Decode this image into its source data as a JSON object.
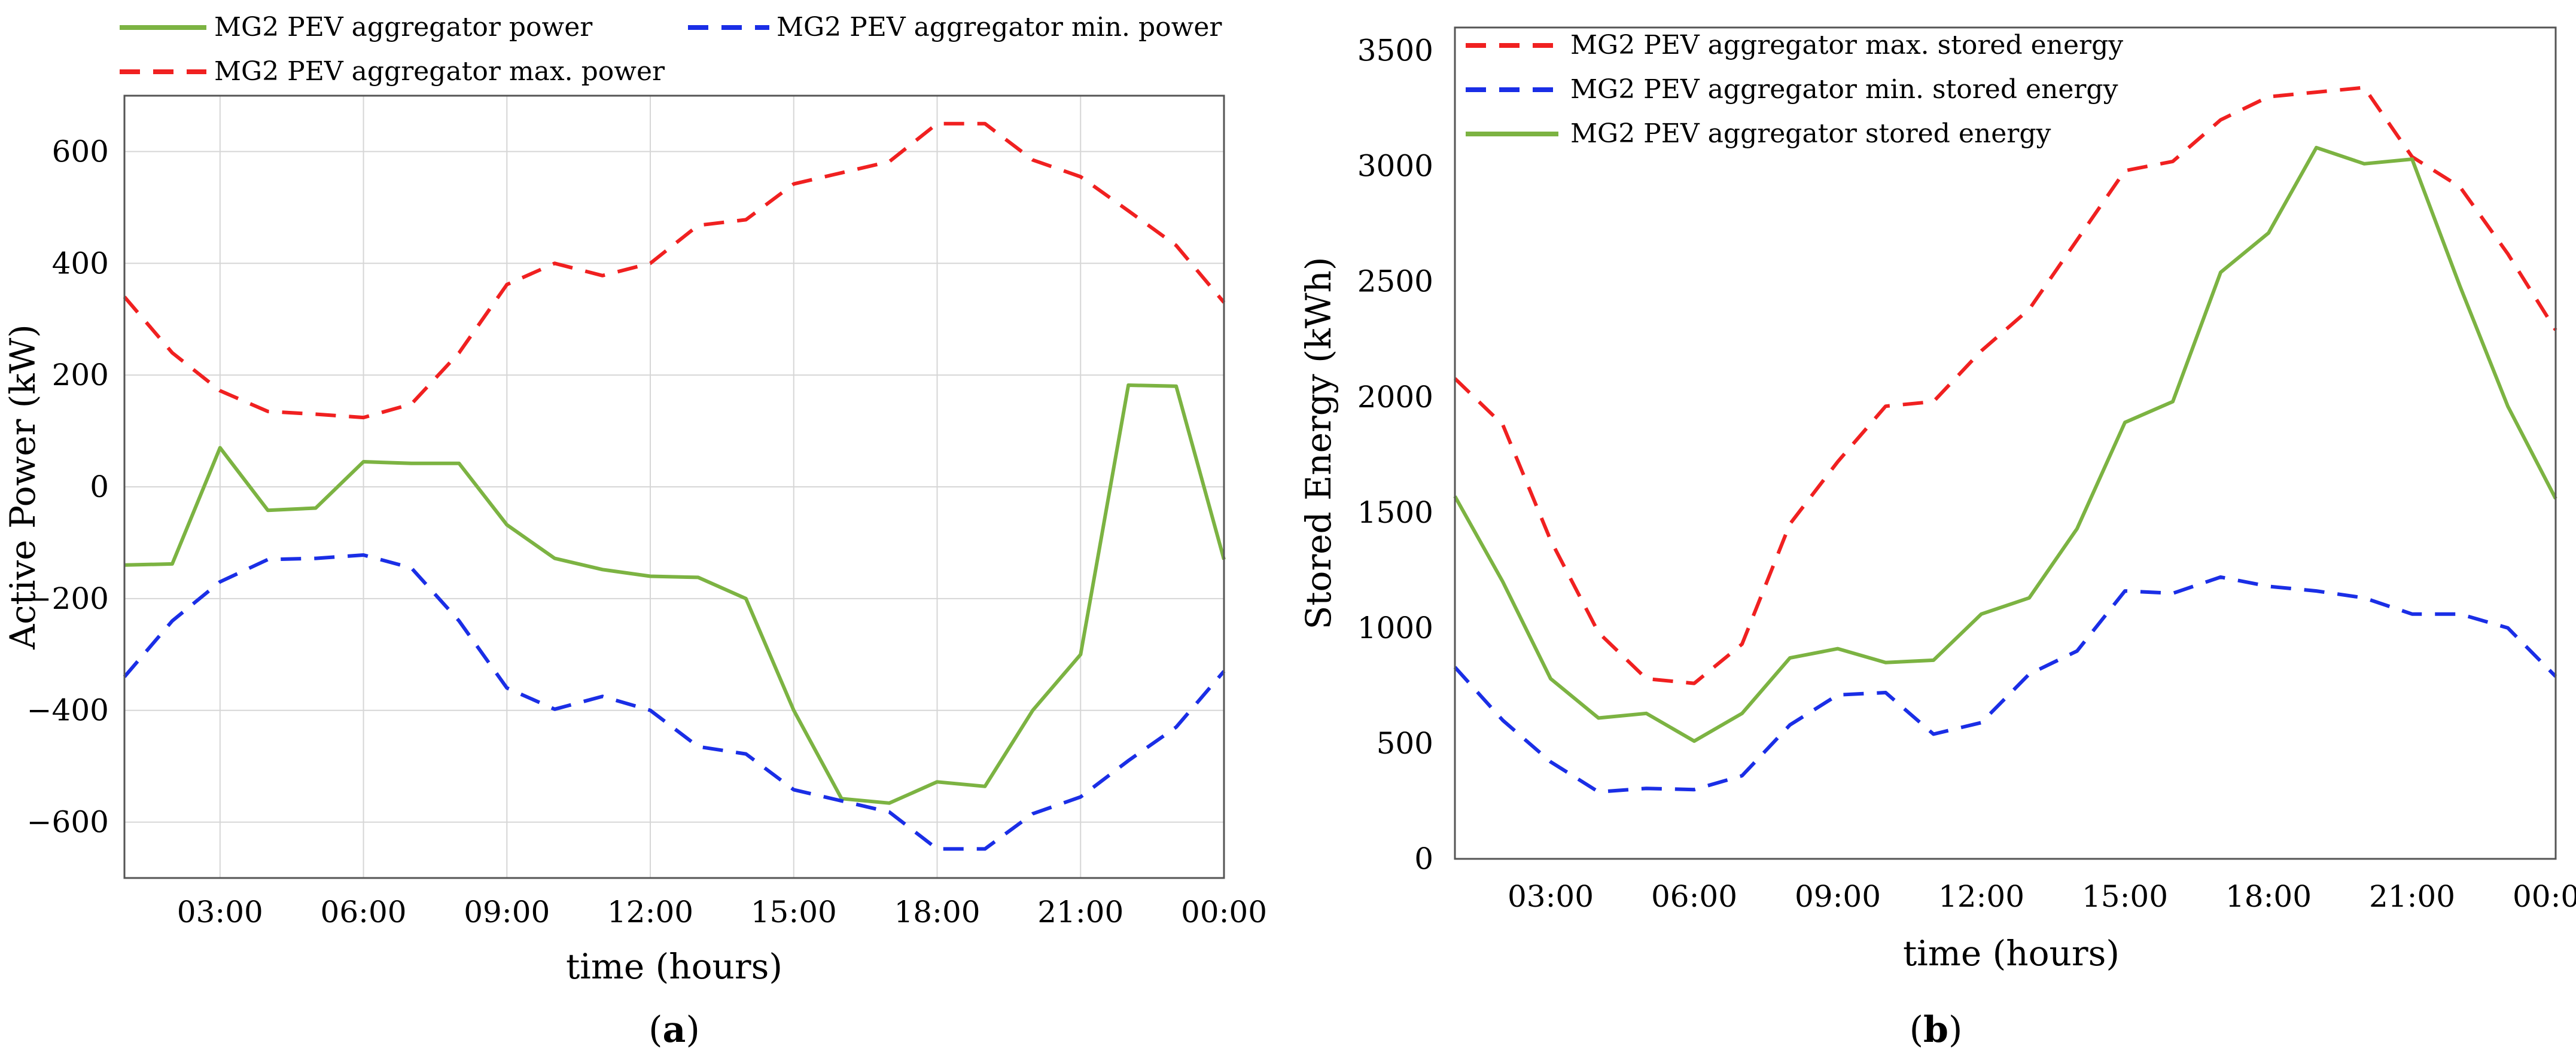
{
  "chart_data": [
    {
      "type": "line",
      "panel_label": "a",
      "xlabel": "time (hours)",
      "ylabel": "Active Power (kW)",
      "x_hours": [
        1,
        2,
        3,
        4,
        5,
        6,
        7,
        8,
        9,
        10,
        11,
        12,
        13,
        14,
        15,
        16,
        17,
        18,
        19,
        20,
        21,
        22,
        23,
        24
      ],
      "xlim": [
        1,
        24
      ],
      "ylim": [
        -700,
        700
      ],
      "xticks": [
        {
          "value": 3,
          "label": "03:00"
        },
        {
          "value": 6,
          "label": "06:00"
        },
        {
          "value": 9,
          "label": "09:00"
        },
        {
          "value": 12,
          "label": "12:00"
        },
        {
          "value": 15,
          "label": "15:00"
        },
        {
          "value": 18,
          "label": "18:00"
        },
        {
          "value": 21,
          "label": "21:00"
        },
        {
          "value": 24,
          "label": "00:00"
        }
      ],
      "yticks": [
        {
          "value": -600,
          "label": "−600"
        },
        {
          "value": -400,
          "label": "−400"
        },
        {
          "value": -200,
          "label": "−200"
        },
        {
          "value": 0,
          "label": "0"
        },
        {
          "value": 200,
          "label": "200"
        },
        {
          "value": 400,
          "label": "400"
        },
        {
          "value": 600,
          "label": "600"
        }
      ],
      "grid": true,
      "legend_position": "above",
      "series": [
        {
          "name": "MG2 PEV aggregator power",
          "color": "#7cb342",
          "dash": "solid",
          "values": [
            -140,
            -138,
            70,
            -42,
            -38,
            45,
            42,
            42,
            -68,
            -128,
            -148,
            -160,
            -162,
            -200,
            -400,
            -558,
            -566,
            -528,
            -536,
            -400,
            -300,
            182,
            180,
            -130
          ]
        },
        {
          "name": "MG2 PEV aggregator min. power",
          "color": "#1a2ee6",
          "dash": "dashed",
          "values": [
            -340,
            -240,
            -170,
            -130,
            -128,
            -122,
            -145,
            -240,
            -360,
            -398,
            -375,
            -400,
            -465,
            -478,
            -542,
            -562,
            -582,
            -648,
            -648,
            -585,
            -555,
            -490,
            -430,
            -330
          ]
        },
        {
          "name": "MG2 PEV aggregator max. power",
          "color": "#f02020",
          "dash": "dashed",
          "values": [
            340,
            240,
            172,
            135,
            130,
            124,
            148,
            240,
            362,
            400,
            378,
            400,
            468,
            478,
            542,
            562,
            582,
            650,
            650,
            585,
            555,
            494,
            432,
            330
          ]
        }
      ]
    },
    {
      "type": "line",
      "panel_label": "b",
      "xlabel": "time (hours)",
      "ylabel": "Stored Energy (kWh)",
      "x_hours": [
        1,
        2,
        3,
        4,
        5,
        6,
        7,
        8,
        9,
        10,
        11,
        12,
        13,
        14,
        15,
        16,
        17,
        18,
        19,
        20,
        21,
        22,
        23,
        24
      ],
      "xlim": [
        1,
        24
      ],
      "ylim": [
        0,
        3600
      ],
      "xticks": [
        {
          "value": 3,
          "label": "03:00"
        },
        {
          "value": 6,
          "label": "06:00"
        },
        {
          "value": 9,
          "label": "09:00"
        },
        {
          "value": 12,
          "label": "12:00"
        },
        {
          "value": 15,
          "label": "15:00"
        },
        {
          "value": 18,
          "label": "18:00"
        },
        {
          "value": 21,
          "label": "21:00"
        },
        {
          "value": 24,
          "label": "00:00"
        }
      ],
      "yticks": [
        {
          "value": 0,
          "label": "0"
        },
        {
          "value": 500,
          "label": "500"
        },
        {
          "value": 1000,
          "label": "1000"
        },
        {
          "value": 1500,
          "label": "1500"
        },
        {
          "value": 2000,
          "label": "2000"
        },
        {
          "value": 2500,
          "label": "2500"
        },
        {
          "value": 3000,
          "label": "3000"
        },
        {
          "value": 3500,
          "label": "3500"
        }
      ],
      "grid": false,
      "legend_position": "top-left",
      "series": [
        {
          "name": "MG2 PEV aggregator max. stored energy",
          "color": "#f02020",
          "dash": "dashed",
          "values": [
            2080,
            1880,
            1380,
            980,
            780,
            760,
            930,
            1450,
            1720,
            1960,
            1980,
            2200,
            2380,
            2680,
            2980,
            3020,
            3200,
            3300,
            3320,
            3340,
            3040,
            2910,
            2620,
            2290
          ]
        },
        {
          "name": "MG2 PEV aggregator min. stored energy",
          "color": "#1a2ee6",
          "dash": "dashed",
          "values": [
            830,
            600,
            420,
            290,
            305,
            300,
            360,
            580,
            710,
            720,
            540,
            590,
            800,
            900,
            1160,
            1150,
            1220,
            1180,
            1160,
            1130,
            1060,
            1060,
            1000,
            790
          ]
        },
        {
          "name": "MG2 PEV aggregator stored energy",
          "color": "#7cb342",
          "dash": "solid",
          "values": [
            1570,
            1200,
            780,
            610,
            630,
            510,
            630,
            870,
            910,
            850,
            860,
            1060,
            1130,
            1430,
            1890,
            1980,
            2540,
            2710,
            3080,
            3010,
            3030,
            2480,
            1960,
            1560
          ]
        }
      ]
    }
  ]
}
